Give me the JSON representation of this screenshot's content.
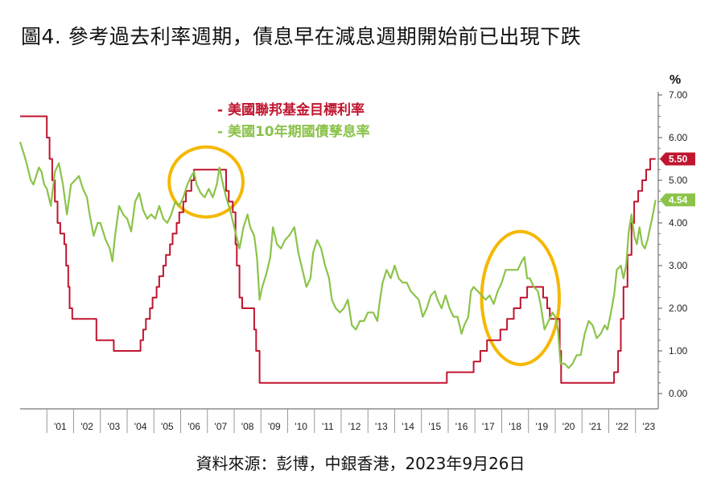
{
  "title": "圖4. 參考過去利率週期，債息早在減息週期開始前已出現下跌",
  "source": "資料來源：彭博，中銀香港，2023年9月26日",
  "chart_data": {
    "type": "line",
    "unit": "%",
    "ylim": [
      0,
      7
    ],
    "yticks": [
      "0.00",
      "1.00",
      "2.00",
      "3.00",
      "4.00",
      "5.00",
      "6.00",
      "7.00"
    ],
    "xlim": [
      2000.0,
      2023.85
    ],
    "x_ticks": [
      "'01",
      "'02",
      "'03",
      "'04",
      "'05",
      "'06",
      "'07",
      "'08",
      "'09",
      "'10",
      "'11",
      "'12",
      "'13",
      "'14",
      "'15",
      "'16",
      "'17",
      "'18",
      "'19",
      "'20",
      "'21",
      "'22",
      "'23"
    ],
    "legend_position": "top-center",
    "grid": false,
    "series": [
      {
        "name": "美國聯邦基金目標利率",
        "color": "#c0152f",
        "end_label": "5.50",
        "step": true,
        "points": [
          [
            2000.0,
            6.5
          ],
          [
            2001.0,
            6.0
          ],
          [
            2001.1,
            5.5
          ],
          [
            2001.2,
            5.0
          ],
          [
            2001.3,
            4.5
          ],
          [
            2001.4,
            4.0
          ],
          [
            2001.5,
            3.75
          ],
          [
            2001.65,
            3.5
          ],
          [
            2001.72,
            3.0
          ],
          [
            2001.8,
            2.5
          ],
          [
            2001.85,
            2.0
          ],
          [
            2001.95,
            1.75
          ],
          [
            2002.85,
            1.25
          ],
          [
            2003.5,
            1.0
          ],
          [
            2004.5,
            1.25
          ],
          [
            2004.6,
            1.5
          ],
          [
            2004.7,
            1.75
          ],
          [
            2004.85,
            2.0
          ],
          [
            2004.95,
            2.25
          ],
          [
            2005.1,
            2.5
          ],
          [
            2005.2,
            2.75
          ],
          [
            2005.35,
            3.0
          ],
          [
            2005.45,
            3.25
          ],
          [
            2005.6,
            3.5
          ],
          [
            2005.7,
            3.75
          ],
          [
            2005.85,
            4.0
          ],
          [
            2005.95,
            4.25
          ],
          [
            2006.1,
            4.5
          ],
          [
            2006.2,
            4.75
          ],
          [
            2006.4,
            5.0
          ],
          [
            2006.5,
            5.25
          ],
          [
            2007.7,
            4.75
          ],
          [
            2007.8,
            4.5
          ],
          [
            2007.95,
            4.25
          ],
          [
            2008.05,
            3.5
          ],
          [
            2008.1,
            3.0
          ],
          [
            2008.2,
            2.25
          ],
          [
            2008.3,
            2.0
          ],
          [
            2008.75,
            1.5
          ],
          [
            2008.82,
            1.0
          ],
          [
            2008.95,
            0.25
          ],
          [
            2015.95,
            0.5
          ],
          [
            2016.95,
            0.75
          ],
          [
            2017.2,
            1.0
          ],
          [
            2017.45,
            1.25
          ],
          [
            2017.95,
            1.5
          ],
          [
            2018.2,
            1.75
          ],
          [
            2018.45,
            2.0
          ],
          [
            2018.7,
            2.25
          ],
          [
            2018.95,
            2.5
          ],
          [
            2019.55,
            2.25
          ],
          [
            2019.7,
            2.0
          ],
          [
            2019.8,
            1.75
          ],
          [
            2020.17,
            1.0
          ],
          [
            2020.22,
            0.25
          ],
          [
            2022.2,
            0.5
          ],
          [
            2022.35,
            1.0
          ],
          [
            2022.45,
            1.75
          ],
          [
            2022.55,
            2.5
          ],
          [
            2022.7,
            3.25
          ],
          [
            2022.85,
            4.0
          ],
          [
            2022.95,
            4.5
          ],
          [
            2023.1,
            4.75
          ],
          [
            2023.25,
            5.0
          ],
          [
            2023.4,
            5.25
          ],
          [
            2023.55,
            5.5
          ],
          [
            2023.75,
            5.5
          ]
        ]
      },
      {
        "name": "美國10年期國債孳息率",
        "color": "#8bc34a",
        "end_label": "4.54",
        "step": false,
        "points": [
          [
            2000.0,
            5.9
          ],
          [
            2000.2,
            5.5
          ],
          [
            2000.4,
            5.0
          ],
          [
            2000.5,
            4.9
          ],
          [
            2000.6,
            5.1
          ],
          [
            2000.7,
            5.3
          ],
          [
            2000.8,
            5.2
          ],
          [
            2000.9,
            4.9
          ],
          [
            2001.0,
            4.8
          ],
          [
            2001.15,
            4.4
          ],
          [
            2001.3,
            5.2
          ],
          [
            2001.45,
            5.4
          ],
          [
            2001.6,
            4.9
          ],
          [
            2001.75,
            4.2
          ],
          [
            2001.9,
            4.9
          ],
          [
            2002.05,
            5.0
          ],
          [
            2002.2,
            5.1
          ],
          [
            2002.35,
            4.8
          ],
          [
            2002.5,
            4.6
          ],
          [
            2002.6,
            4.2
          ],
          [
            2002.75,
            3.7
          ],
          [
            2002.9,
            4.0
          ],
          [
            2003.0,
            4.0
          ],
          [
            2003.2,
            3.6
          ],
          [
            2003.35,
            3.4
          ],
          [
            2003.45,
            3.1
          ],
          [
            2003.55,
            3.7
          ],
          [
            2003.7,
            4.4
          ],
          [
            2003.85,
            4.2
          ],
          [
            2004.0,
            4.1
          ],
          [
            2004.15,
            3.8
          ],
          [
            2004.3,
            4.5
          ],
          [
            2004.45,
            4.7
          ],
          [
            2004.6,
            4.3
          ],
          [
            2004.75,
            4.1
          ],
          [
            2004.9,
            4.2
          ],
          [
            2005.05,
            4.1
          ],
          [
            2005.2,
            4.4
          ],
          [
            2005.35,
            4.1
          ],
          [
            2005.5,
            4.0
          ],
          [
            2005.65,
            4.2
          ],
          [
            2005.8,
            4.5
          ],
          [
            2005.95,
            4.4
          ],
          [
            2006.1,
            4.6
          ],
          [
            2006.25,
            4.9
          ],
          [
            2006.4,
            5.1
          ],
          [
            2006.5,
            5.2
          ],
          [
            2006.6,
            4.9
          ],
          [
            2006.75,
            4.7
          ],
          [
            2006.9,
            4.6
          ],
          [
            2007.05,
            4.8
          ],
          [
            2007.2,
            4.6
          ],
          [
            2007.35,
            4.9
          ],
          [
            2007.45,
            5.3
          ],
          [
            2007.55,
            5.0
          ],
          [
            2007.7,
            4.6
          ],
          [
            2007.85,
            4.3
          ],
          [
            2008.0,
            3.9
          ],
          [
            2008.2,
            3.4
          ],
          [
            2008.35,
            3.9
          ],
          [
            2008.5,
            4.2
          ],
          [
            2008.6,
            3.9
          ],
          [
            2008.75,
            3.7
          ],
          [
            2008.85,
            3.2
          ],
          [
            2008.95,
            2.2
          ],
          [
            2009.05,
            2.5
          ],
          [
            2009.2,
            2.8
          ],
          [
            2009.35,
            3.2
          ],
          [
            2009.45,
            3.9
          ],
          [
            2009.6,
            3.5
          ],
          [
            2009.75,
            3.4
          ],
          [
            2009.9,
            3.6
          ],
          [
            2010.05,
            3.7
          ],
          [
            2010.25,
            3.9
          ],
          [
            2010.4,
            3.3
          ],
          [
            2010.55,
            2.9
          ],
          [
            2010.7,
            2.5
          ],
          [
            2010.85,
            2.7
          ],
          [
            2010.95,
            3.3
          ],
          [
            2011.1,
            3.6
          ],
          [
            2011.25,
            3.4
          ],
          [
            2011.4,
            3.0
          ],
          [
            2011.55,
            2.7
          ],
          [
            2011.65,
            2.2
          ],
          [
            2011.8,
            2.0
          ],
          [
            2011.95,
            1.9
          ],
          [
            2012.1,
            2.0
          ],
          [
            2012.25,
            2.2
          ],
          [
            2012.4,
            1.6
          ],
          [
            2012.55,
            1.5
          ],
          [
            2012.7,
            1.7
          ],
          [
            2012.85,
            1.7
          ],
          [
            2013.0,
            1.9
          ],
          [
            2013.2,
            1.9
          ],
          [
            2013.35,
            1.7
          ],
          [
            2013.45,
            2.2
          ],
          [
            2013.55,
            2.6
          ],
          [
            2013.7,
            2.9
          ],
          [
            2013.85,
            2.7
          ],
          [
            2014.0,
            3.0
          ],
          [
            2014.15,
            2.7
          ],
          [
            2014.3,
            2.6
          ],
          [
            2014.45,
            2.6
          ],
          [
            2014.6,
            2.4
          ],
          [
            2014.75,
            2.3
          ],
          [
            2014.9,
            2.2
          ],
          [
            2015.05,
            1.8
          ],
          [
            2015.2,
            2.0
          ],
          [
            2015.35,
            2.3
          ],
          [
            2015.5,
            2.4
          ],
          [
            2015.6,
            2.2
          ],
          [
            2015.75,
            2.0
          ],
          [
            2015.9,
            2.3
          ],
          [
            2016.05,
            2.0
          ],
          [
            2016.2,
            1.8
          ],
          [
            2016.35,
            1.8
          ],
          [
            2016.5,
            1.4
          ],
          [
            2016.6,
            1.6
          ],
          [
            2016.75,
            1.8
          ],
          [
            2016.85,
            2.4
          ],
          [
            2016.95,
            2.5
          ],
          [
            2017.1,
            2.4
          ],
          [
            2017.25,
            2.3
          ],
          [
            2017.4,
            2.2
          ],
          [
            2017.55,
            2.3
          ],
          [
            2017.7,
            2.1
          ],
          [
            2017.85,
            2.4
          ],
          [
            2018.0,
            2.6
          ],
          [
            2018.15,
            2.9
          ],
          [
            2018.3,
            2.9
          ],
          [
            2018.45,
            2.9
          ],
          [
            2018.6,
            2.9
          ],
          [
            2018.75,
            3.1
          ],
          [
            2018.85,
            3.2
          ],
          [
            2018.95,
            2.7
          ],
          [
            2019.05,
            2.7
          ],
          [
            2019.2,
            2.5
          ],
          [
            2019.35,
            2.4
          ],
          [
            2019.45,
            2.1
          ],
          [
            2019.6,
            1.5
          ],
          [
            2019.75,
            1.7
          ],
          [
            2019.9,
            1.9
          ],
          [
            2020.0,
            1.8
          ],
          [
            2020.1,
            1.5
          ],
          [
            2020.2,
            0.7
          ],
          [
            2020.35,
            0.7
          ],
          [
            2020.5,
            0.6
          ],
          [
            2020.65,
            0.7
          ],
          [
            2020.8,
            0.9
          ],
          [
            2020.95,
            0.9
          ],
          [
            2021.1,
            1.4
          ],
          [
            2021.25,
            1.7
          ],
          [
            2021.4,
            1.6
          ],
          [
            2021.55,
            1.3
          ],
          [
            2021.7,
            1.4
          ],
          [
            2021.85,
            1.6
          ],
          [
            2021.95,
            1.5
          ],
          [
            2022.05,
            1.8
          ],
          [
            2022.2,
            2.3
          ],
          [
            2022.3,
            2.9
          ],
          [
            2022.45,
            3.0
          ],
          [
            2022.55,
            2.7
          ],
          [
            2022.65,
            3.0
          ],
          [
            2022.75,
            3.8
          ],
          [
            2022.85,
            4.2
          ],
          [
            2022.95,
            3.7
          ],
          [
            2023.05,
            3.5
          ],
          [
            2023.15,
            3.9
          ],
          [
            2023.25,
            3.5
          ],
          [
            2023.35,
            3.4
          ],
          [
            2023.45,
            3.6
          ],
          [
            2023.55,
            3.9
          ],
          [
            2023.65,
            4.2
          ],
          [
            2023.75,
            4.54
          ]
        ]
      }
    ]
  },
  "annotations": [
    {
      "name": "highlight-2006-2007",
      "color": "#f5b800",
      "center_x": 2006.95,
      "center_y": 4.96,
      "radius_years": 1.38,
      "radius_pct": 0.82
    },
    {
      "name": "highlight-2018-2019",
      "color": "#f5b800",
      "center_x": 2018.7,
      "center_y": 2.24,
      "radius_years": 1.45,
      "radius_pct": 1.56
    }
  ]
}
